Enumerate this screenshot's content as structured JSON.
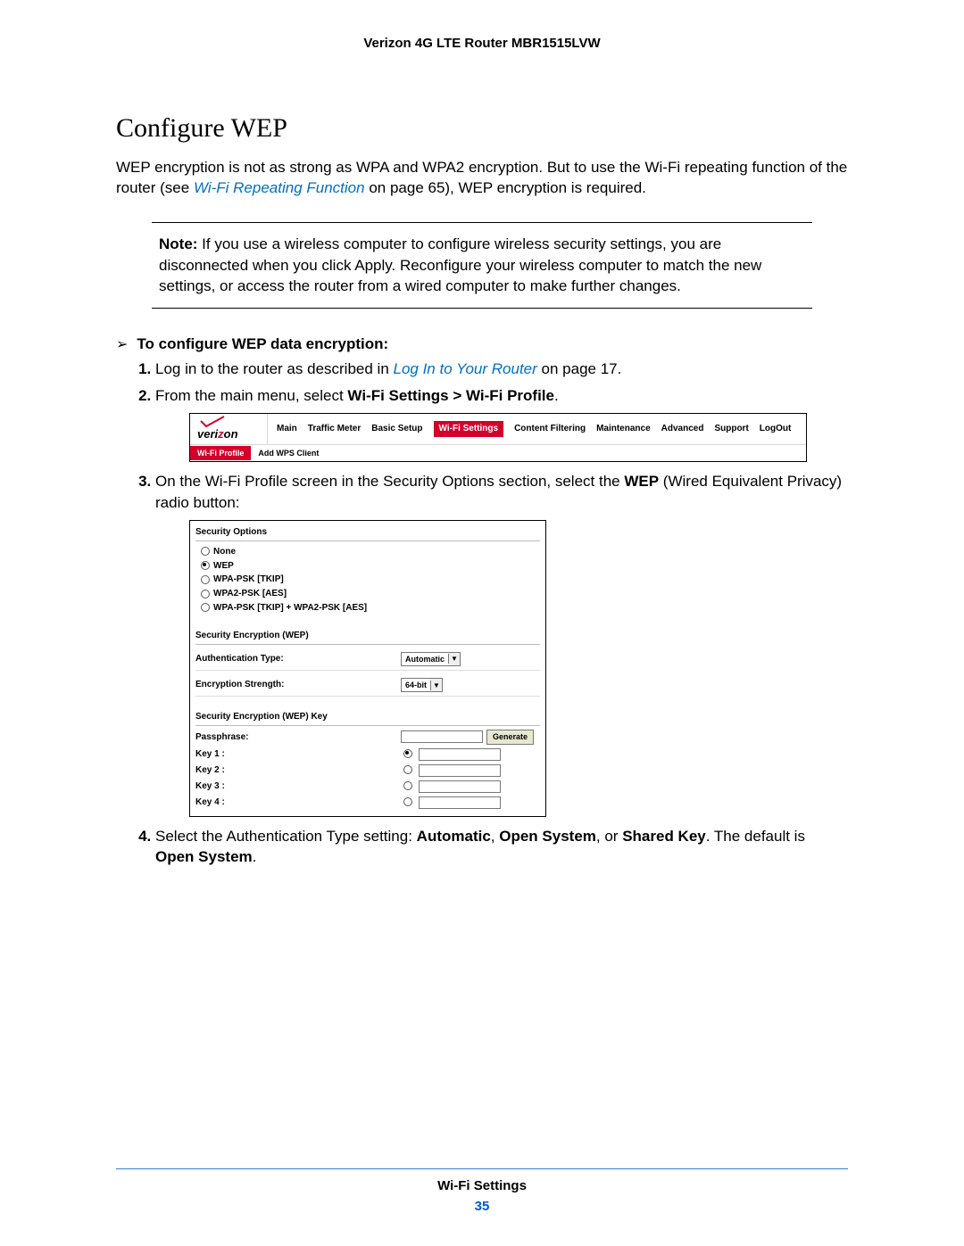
{
  "header": {
    "product": "Verizon 4G LTE Router MBR1515LVW"
  },
  "title": "Configure WEP",
  "intro": {
    "p1a": "WEP encryption is not as strong as WPA and WPA2 encryption. But to use the Wi-Fi repeating function of the router (see ",
    "p1_link": "Wi-Fi Repeating Function",
    "p1b": " on page 65), WEP encryption is required."
  },
  "note": {
    "label": "Note:",
    "text": " If you use a wireless computer to configure wireless security settings, you are disconnected when you click Apply. Reconfigure your wireless computer to match the new settings, or access the router from a wired computer to make further changes."
  },
  "proc_title": "To configure WEP data encryption:",
  "steps": {
    "s1a": "Log in to the router as described in ",
    "s1_link": "Log In to Your Router",
    "s1b": " on page 17.",
    "s2a": "From the main menu, select ",
    "s2_bold": "Wi-Fi Settings > Wi-Fi Profile",
    "s2b": ".",
    "s3a": "On the Wi-Fi Profile screen in the Security Options section, select the ",
    "s3_bold": "WEP",
    "s3b": " (Wired Equivalent Privacy) radio button:",
    "s4a": "Select the Authentication Type setting: ",
    "s4_b1": "Automatic",
    "s4_c1": ", ",
    "s4_b2": "Open System",
    "s4_c2": ", or ",
    "s4_b3": "Shared Key",
    "s4_c3": ". The default is ",
    "s4_b4": "Open System",
    "s4_c4": "."
  },
  "nav": {
    "logo_a": "veri",
    "logo_b": "z",
    "logo_c": "on",
    "tabs": [
      "Main",
      "Traffic Meter",
      "Basic Setup",
      "Wi-Fi Settings",
      "Content Filtering",
      "Maintenance",
      "Advanced",
      "Support",
      "LogOut"
    ],
    "active_tab_index": 3,
    "sub_tabs": [
      "Wi-Fi Profile",
      "Add WPS Client"
    ],
    "active_sub_index": 0
  },
  "sec": {
    "title": "Security Options",
    "options": [
      "None",
      "WEP",
      "WPA-PSK [TKIP]",
      "WPA2-PSK [AES]",
      "WPA-PSK [TKIP] + WPA2-PSK [AES]"
    ],
    "checked_index": 1,
    "enc_title": "Security Encryption (WEP)",
    "auth_label": "Authentication Type:",
    "auth_value": "Automatic",
    "strength_label": "Encryption Strength:",
    "strength_value": "64-bit",
    "key_title": "Security Encryption (WEP) Key",
    "pass_label": "Passphrase:",
    "generate": "Generate",
    "keys": [
      "Key 1 :",
      "Key 2 :",
      "Key 3 :",
      "Key 4 :"
    ],
    "key_checked_index": 0
  },
  "footer": {
    "section": "Wi-Fi Settings",
    "page": "35"
  }
}
